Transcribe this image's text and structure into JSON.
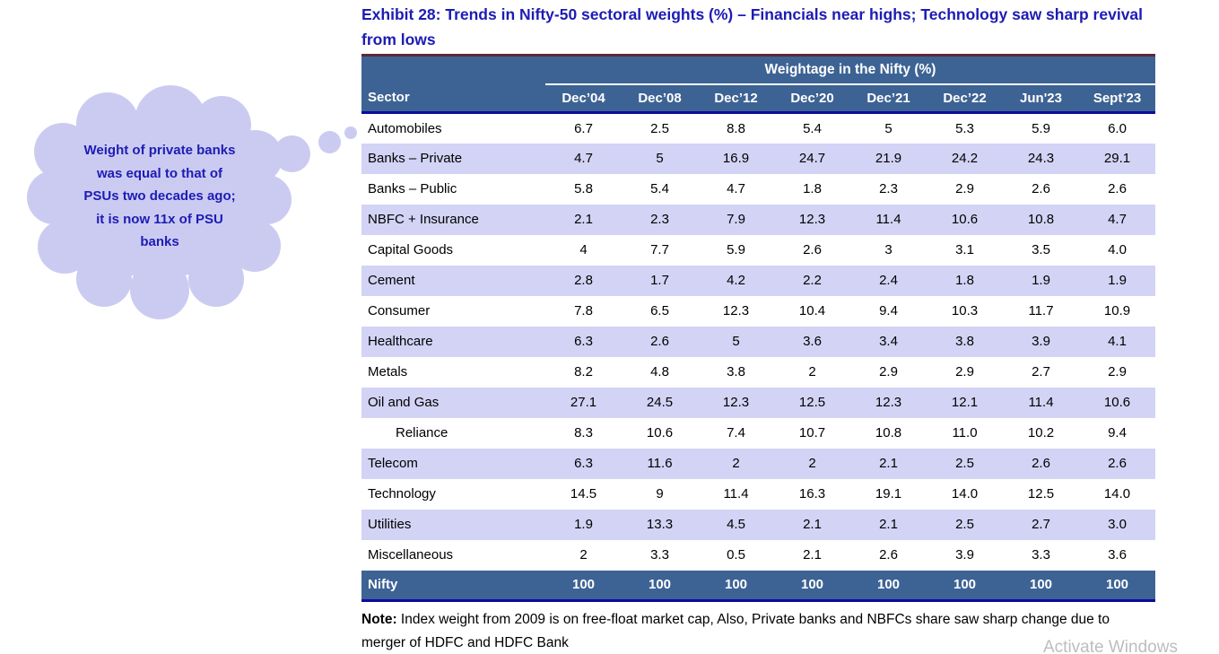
{
  "title": "Exhibit 28: Trends in Nifty-50 sectoral weights (%) – Financials near highs; Technology saw sharp revival from lows",
  "callout": {
    "text": "Weight of private banks was equal to that of PSUs two decades ago; it is now 11x of PSU banks"
  },
  "table": {
    "group_header": "Weightage in the Nifty (%)",
    "columns": [
      "Sector",
      "Dec’04",
      "Dec’08",
      "Dec’12",
      "Dec’20",
      "Dec’21",
      "Dec’22",
      "Jun'23",
      "Sept’23"
    ],
    "rows": [
      {
        "sector": "Automobiles",
        "indent": false,
        "values": [
          "6.7",
          "2.5",
          "8.8",
          "5.4",
          "5",
          "5.3",
          "5.9",
          "6.0"
        ]
      },
      {
        "sector": "Banks – Private",
        "indent": false,
        "values": [
          "4.7",
          "5",
          "16.9",
          "24.7",
          "21.9",
          "24.2",
          "24.3",
          "29.1"
        ]
      },
      {
        "sector": "Banks – Public",
        "indent": false,
        "values": [
          "5.8",
          "5.4",
          "4.7",
          "1.8",
          "2.3",
          "2.9",
          "2.6",
          "2.6"
        ]
      },
      {
        "sector": "NBFC + Insurance",
        "indent": false,
        "values": [
          "2.1",
          "2.3",
          "7.9",
          "12.3",
          "11.4",
          "10.6",
          "10.8",
          "4.7"
        ]
      },
      {
        "sector": "Capital Goods",
        "indent": false,
        "values": [
          "4",
          "7.7",
          "5.9",
          "2.6",
          "3",
          "3.1",
          "3.5",
          "4.0"
        ]
      },
      {
        "sector": "Cement",
        "indent": false,
        "values": [
          "2.8",
          "1.7",
          "4.2",
          "2.2",
          "2.4",
          "1.8",
          "1.9",
          "1.9"
        ]
      },
      {
        "sector": "Consumer",
        "indent": false,
        "values": [
          "7.8",
          "6.5",
          "12.3",
          "10.4",
          "9.4",
          "10.3",
          "11.7",
          "10.9"
        ]
      },
      {
        "sector": "Healthcare",
        "indent": false,
        "values": [
          "6.3",
          "2.6",
          "5",
          "3.6",
          "3.4",
          "3.8",
          "3.9",
          "4.1"
        ]
      },
      {
        "sector": "Metals",
        "indent": false,
        "values": [
          "8.2",
          "4.8",
          "3.8",
          "2",
          "2.9",
          "2.9",
          "2.7",
          "2.9"
        ]
      },
      {
        "sector": "Oil and Gas",
        "indent": false,
        "values": [
          "27.1",
          "24.5",
          "12.3",
          "12.5",
          "12.3",
          "12.1",
          "11.4",
          "10.6"
        ]
      },
      {
        "sector": "Reliance",
        "indent": true,
        "values": [
          "8.3",
          "10.6",
          "7.4",
          "10.7",
          "10.8",
          "11.0",
          "10.2",
          "9.4"
        ]
      },
      {
        "sector": "Telecom",
        "indent": false,
        "values": [
          "6.3",
          "11.6",
          "2",
          "2",
          "2.1",
          "2.5",
          "2.6",
          "2.6"
        ]
      },
      {
        "sector": "Technology",
        "indent": false,
        "values": [
          "14.5",
          "9",
          "11.4",
          "16.3",
          "19.1",
          "14.0",
          "12.5",
          "14.0"
        ]
      },
      {
        "sector": "Utilities",
        "indent": false,
        "values": [
          "1.9",
          "13.3",
          "4.5",
          "2.1",
          "2.1",
          "2.5",
          "2.7",
          "3.0"
        ]
      },
      {
        "sector": "Miscellaneous",
        "indent": false,
        "values": [
          "2",
          "3.3",
          "0.5",
          "2.1",
          "2.6",
          "3.9",
          "3.3",
          "3.6"
        ]
      }
    ],
    "total_row": {
      "sector": "Nifty",
      "values": [
        "100",
        "100",
        "100",
        "100",
        "100",
        "100",
        "100",
        "100"
      ]
    }
  },
  "note": {
    "label": "Note:",
    "text": " Index weight from 2009 is on free-float market cap, Also, Private banks and NBFCs share saw sharp change due to merger of HDFC and HDFC Bank"
  },
  "watermark": "Activate Windows",
  "colors": {
    "header_bg": "#3d6394",
    "row_alt": "#d3d3f6",
    "navy_border": "#0b0b9e",
    "title_text": "#1d1cb4",
    "bubble_fill": "#cbcbf2",
    "top_rule": "#5f2637"
  }
}
